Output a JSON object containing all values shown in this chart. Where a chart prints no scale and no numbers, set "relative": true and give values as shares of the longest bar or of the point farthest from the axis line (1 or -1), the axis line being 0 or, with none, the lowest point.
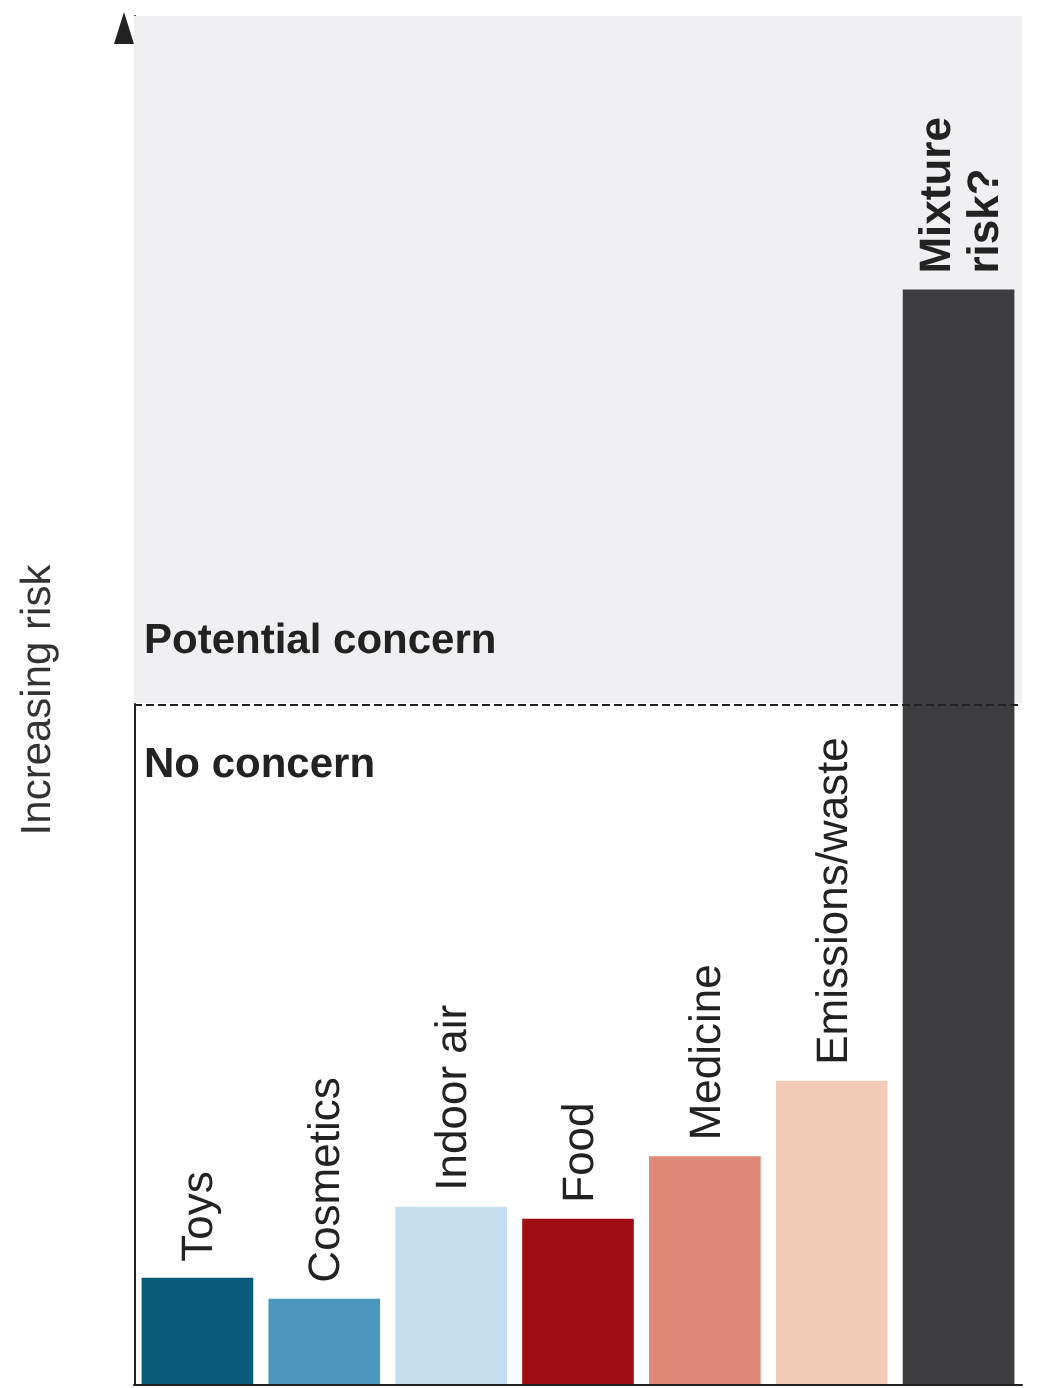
{
  "chart_data": {
    "type": "bar",
    "relative": true,
    "ylabel": "Increasing risk",
    "categories": [
      "Toys",
      "Cosmetics",
      "Indoor air",
      "Food",
      "Medicine",
      "Emissions/waste",
      "Mixture risk?"
    ],
    "values": [
      0.097,
      0.078,
      0.162,
      0.151,
      0.208,
      0.277,
      1
    ],
    "colors": [
      "#0a5a7c",
      "#4c97bd",
      "#c6dff0",
      "#a00d14",
      "#e08878",
      "#f1cbb8",
      "#3d3d3f"
    ],
    "bands": [
      {
        "axis": "y",
        "from": 0.622,
        "to": 1.25,
        "label": "Potential concern",
        "color": "#f0f0f2"
      }
    ],
    "ref_lines": [
      {
        "axis": "y",
        "value": 0.622,
        "label": "No concern",
        "color": "#222222",
        "line_style": "dashed"
      }
    ],
    "grid": false
  }
}
